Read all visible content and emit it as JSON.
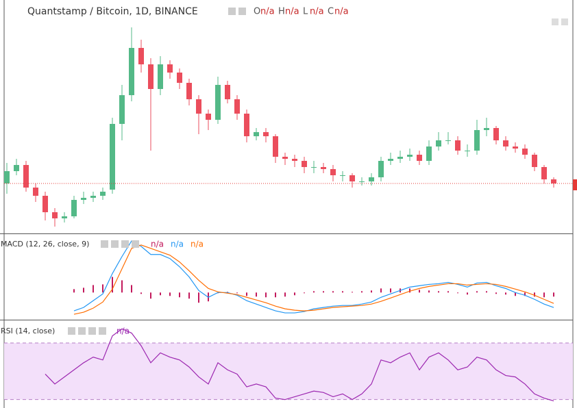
{
  "chart_data": [
    {
      "type": "candlestick",
      "title": "Quantstamp / Bitcoin, 1D, BINANCE",
      "ohlc_labels": [
        {
          "label": "O",
          "value": "n/a"
        },
        {
          "label": "H",
          "value": "n/a"
        },
        {
          "label": "L",
          "value": "n/a"
        },
        {
          "label": "C",
          "value": "n/a"
        }
      ],
      "up_color": "#53b987",
      "down_color": "#eb4d5c",
      "ylim": [
        0,
        112
      ],
      "open": [
        24,
        30,
        33,
        22,
        18,
        10,
        7,
        8,
        16,
        17,
        18,
        21,
        53,
        67,
        90,
        82,
        70,
        82,
        78,
        73,
        65,
        58,
        55,
        72,
        65,
        58,
        47,
        49,
        47,
        37,
        36,
        35,
        32,
        32,
        31,
        28,
        28,
        25,
        25,
        27,
        35,
        36,
        37,
        38,
        35,
        42,
        45,
        45,
        40,
        40,
        50,
        51,
        45,
        42,
        41,
        38,
        32,
        26
      ],
      "high": [
        34,
        36,
        35,
        24,
        20,
        12,
        10,
        18,
        20,
        20,
        22,
        56,
        72,
        100,
        94,
        85,
        86,
        84,
        80,
        75,
        67,
        60,
        76,
        74,
        67,
        60,
        51,
        51,
        48,
        39,
        38,
        37,
        35,
        34,
        33,
        30,
        29,
        27,
        29,
        37,
        39,
        40,
        41,
        40,
        45,
        49,
        49,
        47,
        43,
        55,
        56,
        52,
        47,
        44,
        43,
        39,
        33,
        27
      ],
      "low": [
        19,
        28,
        20,
        15,
        6,
        3,
        5,
        7,
        14,
        15,
        16,
        19,
        45,
        64,
        78,
        40,
        67,
        75,
        70,
        62,
        48,
        50,
        53,
        63,
        55,
        44,
        45,
        44,
        34,
        33,
        32,
        29,
        29,
        29,
        25,
        25,
        22,
        23,
        23,
        25,
        33,
        34,
        35,
        33,
        33,
        40,
        43,
        38,
        37,
        38,
        47,
        43,
        40,
        39,
        36,
        30,
        24,
        22
      ],
      "close": [
        30,
        33,
        22,
        18,
        10,
        7,
        8,
        16,
        17,
        18,
        20,
        53,
        67,
        90,
        82,
        70,
        82,
        78,
        73,
        65,
        58,
        55,
        72,
        65,
        58,
        47,
        49,
        47,
        37,
        36,
        35,
        32,
        32,
        31,
        28,
        28,
        25,
        25,
        27,
        35,
        36,
        37,
        38,
        35,
        42,
        45,
        45,
        40,
        40,
        50,
        51,
        45,
        42,
        41,
        38,
        32,
        26,
        24
      ]
    },
    {
      "type": "macd",
      "title": "MACD (12, 26, close, 9)",
      "ylim": [
        -4,
        8.5
      ],
      "series": [
        {
          "color": "#2196f3",
          "value_label": "n/a",
          "values": [
            null,
            null,
            null,
            null,
            null,
            null,
            null,
            -2.7,
            -2.2,
            -1.2,
            -0.2,
            2.8,
            5.3,
            7.6,
            6.8,
            5.6,
            5.6,
            5,
            3.8,
            2.3,
            0.3,
            -0.7,
            0,
            0,
            -0.4,
            -1.2,
            -1.7,
            -2.2,
            -2.7,
            -3,
            -3,
            -2.8,
            -2.4,
            -2.2,
            -2,
            -1.9,
            -1.9,
            -1.7,
            -1.4,
            -0.7,
            -0.2,
            0.3,
            0.8,
            1,
            1.2,
            1.3,
            1.5,
            1.2,
            0.8,
            1.4,
            1.5,
            1,
            0.6,
            0,
            -0.4,
            -1,
            -1.7,
            -2.2
          ]
        },
        {
          "color": "#ff6d00",
          "value_label": "n/a",
          "values": [
            null,
            null,
            null,
            null,
            null,
            null,
            null,
            -3.2,
            -2.9,
            -2.3,
            -1.4,
            0.5,
            3.5,
            6.5,
            7,
            6.5,
            6,
            5.5,
            4.5,
            3.2,
            1.8,
            0.6,
            0.1,
            -0.1,
            -0.3,
            -0.7,
            -1.1,
            -1.5,
            -2,
            -2.4,
            -2.6,
            -2.7,
            -2.6,
            -2.4,
            -2.2,
            -2.1,
            -2,
            -1.9,
            -1.7,
            -1.3,
            -0.8,
            -0.3,
            0.2,
            0.6,
            0.9,
            1.1,
            1.3,
            1.3,
            1.1,
            1.2,
            1.3,
            1.2,
            0.9,
            0.5,
            0.1,
            -0.4,
            -1,
            -1.6
          ]
        }
      ],
      "histogram": {
        "color": "#c2185b",
        "value_label": "n/a",
        "values": [
          null,
          null,
          null,
          null,
          null,
          null,
          null,
          0.5,
          0.7,
          1.1,
          1.2,
          2.3,
          1.8,
          1.1,
          -0.2,
          -0.9,
          -0.4,
          -0.5,
          -0.7,
          -0.9,
          -1.5,
          -1.3,
          -0.1,
          0.1,
          -0.1,
          -0.5,
          -0.6,
          -0.7,
          -0.7,
          -0.6,
          -0.4,
          -0.1,
          0.2,
          0.2,
          0.2,
          0.2,
          0.1,
          0.2,
          0.3,
          0.6,
          0.6,
          0.6,
          0.6,
          0.4,
          0.3,
          0.2,
          0.2,
          -0.1,
          -0.3,
          0.2,
          0.2,
          -0.2,
          -0.3,
          -0.5,
          -0.5,
          -0.6,
          -0.7,
          -0.6
        ]
      }
    },
    {
      "type": "rsi",
      "title": "RSI (14, close)",
      "ylim": [
        25,
        85
      ],
      "band": [
        30,
        70
      ],
      "color": "#9c27b0",
      "band_color": "#f3e0fa",
      "value_label": "n/a",
      "values": [
        null,
        null,
        null,
        null,
        48,
        41,
        46,
        51,
        56,
        60,
        58,
        75,
        80,
        77,
        68,
        56,
        63,
        60,
        58,
        53,
        46,
        41,
        56,
        51,
        48,
        39,
        41,
        39,
        31,
        30,
        32,
        34,
        36,
        35,
        32,
        34,
        30,
        34,
        41,
        58,
        56,
        60,
        63,
        51,
        60,
        63,
        58,
        51,
        53,
        60,
        58,
        51,
        47,
        46,
        41,
        34,
        31,
        29
      ]
    }
  ]
}
